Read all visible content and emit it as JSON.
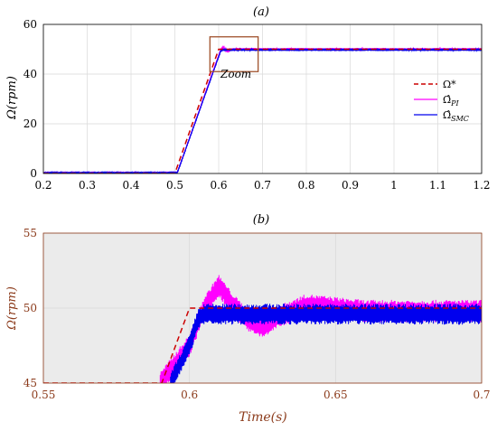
{
  "chart_data": [
    {
      "panel": "(a)",
      "type": "line",
      "title": "(a)",
      "ylabel": "Ω(rpm)",
      "xlabel": "",
      "xlim": [
        0.2,
        1.2
      ],
      "ylim": [
        0,
        60
      ],
      "xticks": [
        0.2,
        0.3,
        0.4,
        0.5,
        0.6,
        0.7,
        0.8,
        0.9,
        1,
        1.1,
        1.2
      ],
      "xtick_labels": [
        "0.2",
        "0.3",
        "0.4",
        "0.5",
        "0.6",
        "0.7",
        "0.8",
        "0.9",
        "1",
        "1.1",
        "1.2"
      ],
      "yticks": [
        0,
        20,
        40,
        60
      ],
      "ytick_labels": [
        "0",
        "20",
        "40",
        "60"
      ],
      "grid": true,
      "legend_position": "right",
      "annotation": "Zoom",
      "zoom_box": {
        "x": [
          0.58,
          0.69
        ],
        "y": [
          41,
          55
        ]
      },
      "series": [
        {
          "name": "Ω*",
          "color": "#cc0000",
          "style": "dashed",
          "x": [
            0.2,
            0.5,
            0.6,
            1.2
          ],
          "y": [
            0,
            0,
            50,
            50
          ]
        },
        {
          "name": "Ω̂PI",
          "color": "#ff00ff",
          "style": "solid",
          "x": [
            0.2,
            0.5,
            0.505,
            0.605,
            0.61,
            0.62,
            0.63,
            0.64,
            1.2
          ],
          "y": [
            0,
            0,
            0,
            50,
            51,
            49,
            50,
            50,
            50
          ]
        },
        {
          "name": "Ω̂SMC",
          "color": "#0000ee",
          "style": "solid",
          "x": [
            0.2,
            0.5,
            0.505,
            0.605,
            0.61,
            1.2
          ],
          "y": [
            0,
            0,
            0,
            49.5,
            49.8,
            49.8
          ]
        }
      ]
    },
    {
      "panel": "(b)",
      "type": "line",
      "title": "(b)",
      "ylabel": "Ω(rpm)",
      "xlabel": "Time(s)",
      "xlim": [
        0.55,
        0.7
      ],
      "ylim": [
        45,
        55
      ],
      "xticks": [
        0.55,
        0.6,
        0.65,
        0.7
      ],
      "xtick_labels": [
        "0.55",
        "0.6",
        "0.65",
        "0.7"
      ],
      "yticks": [
        45,
        50,
        55
      ],
      "ytick_labels": [
        "45",
        "50",
        "55"
      ],
      "grid": true,
      "background": "#ebebeb",
      "series": [
        {
          "name": "Ω*",
          "color": "#cc0000",
          "style": "dashed",
          "x": [
            0.55,
            0.5905,
            0.6,
            0.7
          ],
          "y": [
            45,
            45,
            50,
            50
          ]
        },
        {
          "name": "Ω̂PI",
          "color": "#ff00ff",
          "style": "solid",
          "x": [
            0.59,
            0.6,
            0.605,
            0.61,
            0.615,
            0.62,
            0.625,
            0.63,
            0.64,
            0.66,
            0.7
          ],
          "y": [
            45,
            47.5,
            50,
            51.5,
            50.2,
            49.2,
            48.7,
            49.4,
            50.2,
            49.8,
            49.8
          ]
        },
        {
          "name": "Ω̂SMC",
          "color": "#0000ee",
          "style": "solid",
          "x": [
            0.5935,
            0.6,
            0.603,
            0.605,
            0.7
          ],
          "y": [
            45,
            47.5,
            49.3,
            49.6,
            49.6
          ]
        }
      ]
    }
  ],
  "legend": {
    "entries": [
      {
        "label": "Ω*",
        "color": "#cc0000",
        "style": "dashed"
      },
      {
        "label": "Ω̂",
        "sub": "PI",
        "color": "#ff00ff",
        "style": "solid"
      },
      {
        "label": "Ω̂",
        "sub": "SMC",
        "color": "#0000ee",
        "style": "solid"
      }
    ]
  },
  "colors": {
    "axis_a": "#000000",
    "axis_b": "#8b3a1a",
    "zoom_box": "#a0522d",
    "grid": "#d9d9d9",
    "panel_b_bg": "#ebebeb"
  }
}
